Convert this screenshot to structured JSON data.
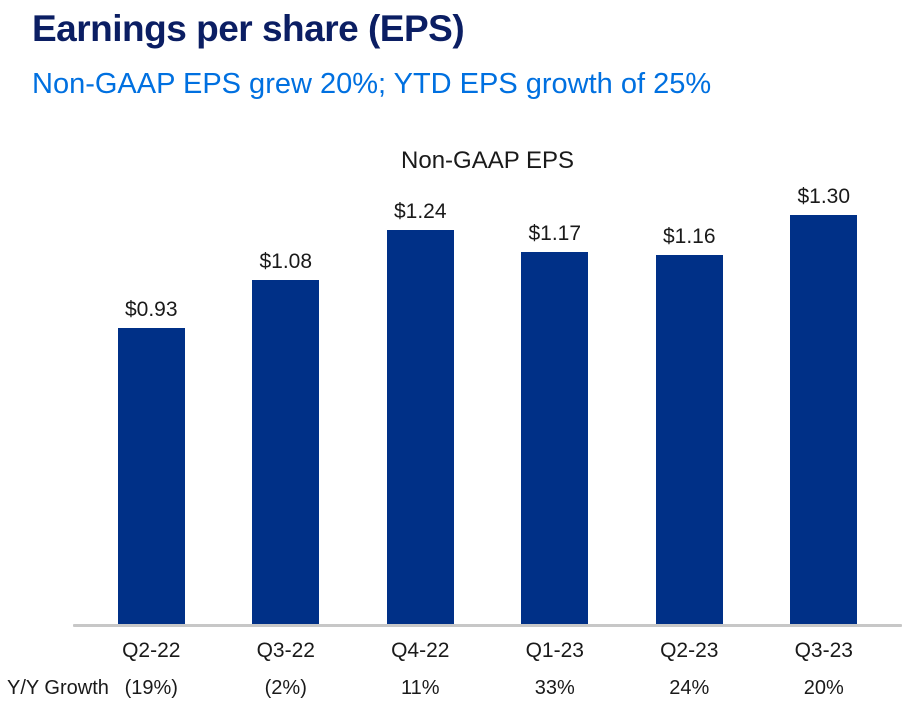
{
  "header": {
    "title": "Earnings per share (EPS)",
    "subtitle": "Non-GAAP EPS grew 20%; YTD EPS growth of 25%"
  },
  "chart_data": {
    "type": "bar",
    "title": "Non-GAAP EPS",
    "categories": [
      "Q2-22",
      "Q3-22",
      "Q4-22",
      "Q1-23",
      "Q2-23",
      "Q3-23"
    ],
    "values": [
      0.93,
      1.08,
      1.24,
      1.17,
      1.16,
      1.3
    ],
    "value_labels": [
      "$0.93",
      "$1.08",
      "$1.24",
      "$1.17",
      "$1.16",
      "$1.30"
    ],
    "xlabel": "",
    "ylabel": "",
    "ylim": [
      0,
      1.38
    ],
    "grid": false,
    "legend": false,
    "growth_row": {
      "label": "Y/Y Growth",
      "values": [
        "(19%)",
        "(2%)",
        "11%",
        "33%",
        "24%",
        "20%"
      ]
    }
  },
  "colors": {
    "title": "#0b1e63",
    "subtitle": "#0070e0",
    "bar": "#003087",
    "axis_line": "#c7c7c7",
    "label_text": "#1a1a1a"
  }
}
